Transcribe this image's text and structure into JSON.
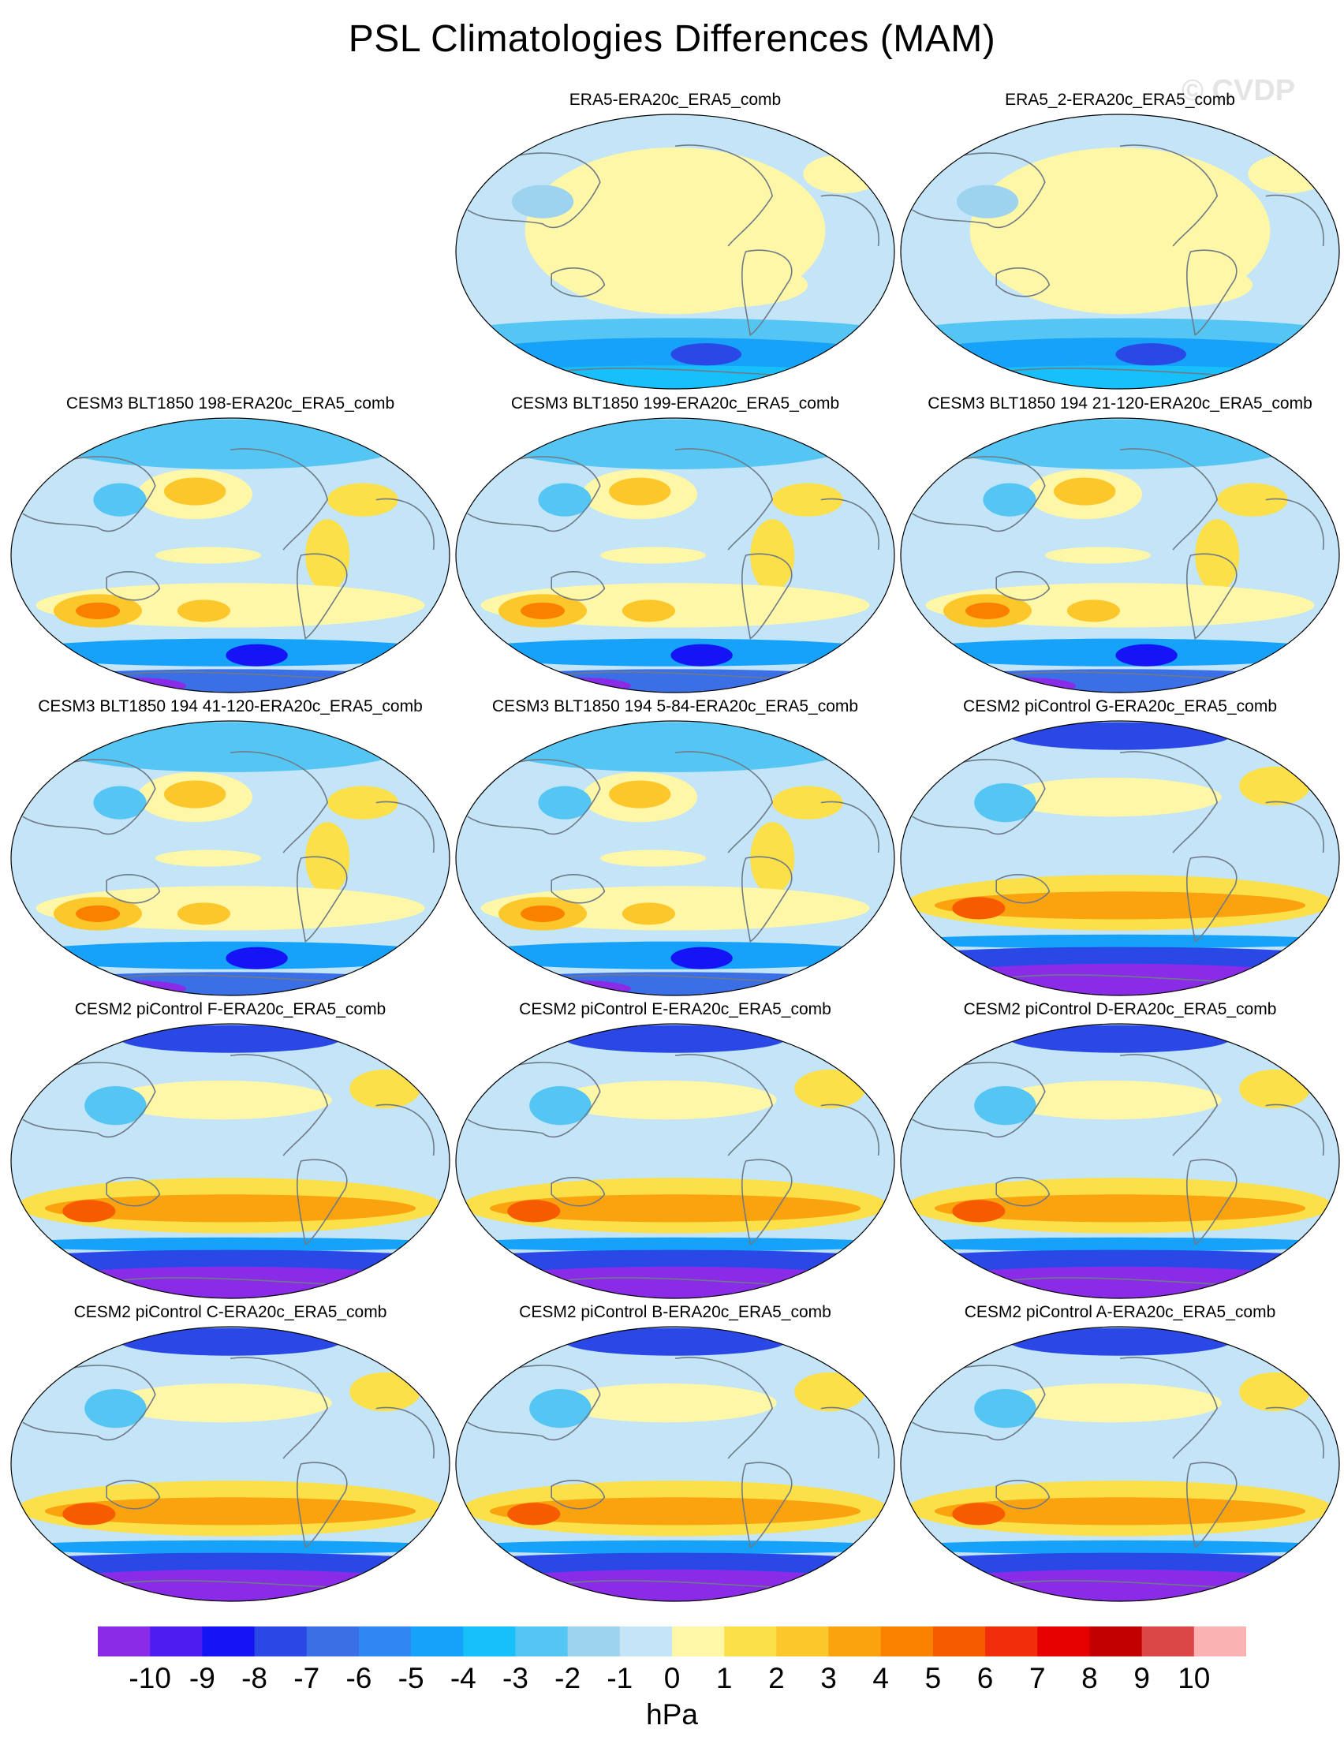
{
  "figure": {
    "title": "PSL Climatologies Differences (MAM)",
    "watermark": "© CVDP",
    "unit": "hPa"
  },
  "panels": [
    {
      "title": "ERA5-ERA20c_ERA5_comb",
      "style": "obs"
    },
    {
      "title": "ERA5_2-ERA20c_ERA5_comb",
      "style": "obs"
    },
    {
      "title": "CESM3 BLT1850 198-ERA20c_ERA5_comb",
      "style": "cesm3"
    },
    {
      "title": "CESM3 BLT1850 199-ERA20c_ERA5_comb",
      "style": "cesm3"
    },
    {
      "title": "CESM3 BLT1850 194 21-120-ERA20c_ERA5_comb",
      "style": "cesm3"
    },
    {
      "title": "CESM3 BLT1850 194 41-120-ERA20c_ERA5_comb",
      "style": "cesm3"
    },
    {
      "title": "CESM3 BLT1850 194 5-84-ERA20c_ERA5_comb",
      "style": "cesm3"
    },
    {
      "title": "CESM2 piControl G-ERA20c_ERA5_comb",
      "style": "cesm2"
    },
    {
      "title": "CESM2 piControl F-ERA20c_ERA5_comb",
      "style": "cesm2"
    },
    {
      "title": "CESM2 piControl E-ERA20c_ERA5_comb",
      "style": "cesm2"
    },
    {
      "title": "CESM2 piControl D-ERA20c_ERA5_comb",
      "style": "cesm2"
    },
    {
      "title": "CESM2 piControl C-ERA20c_ERA5_comb",
      "style": "cesm2"
    },
    {
      "title": "CESM2 piControl B-ERA20c_ERA5_comb",
      "style": "cesm2"
    },
    {
      "title": "CESM2 piControl A-ERA20c_ERA5_comb",
      "style": "cesm2"
    }
  ],
  "colorbar": {
    "labels": [
      "-10",
      "-9",
      "-8",
      "-7",
      "-6",
      "-5",
      "-4",
      "-3",
      "-2",
      "-1",
      "0",
      "1",
      "2",
      "3",
      "4",
      "5",
      "6",
      "7",
      "8",
      "9",
      "10"
    ],
    "colors": [
      "#8a2be8",
      "#4c1cf0",
      "#1414f5",
      "#2a48e6",
      "#3a6fe6",
      "#2e87f2",
      "#16a2f8",
      "#18c0fb",
      "#55c6f4",
      "#9dd3ee",
      "#c4e4f7",
      "#fff7a8",
      "#fbe04a",
      "#fcc72a",
      "#fba30e",
      "#fa8000",
      "#f65b00",
      "#f12d0c",
      "#e60000",
      "#c20000",
      "#db4747",
      "#fbb2b2"
    ]
  }
}
